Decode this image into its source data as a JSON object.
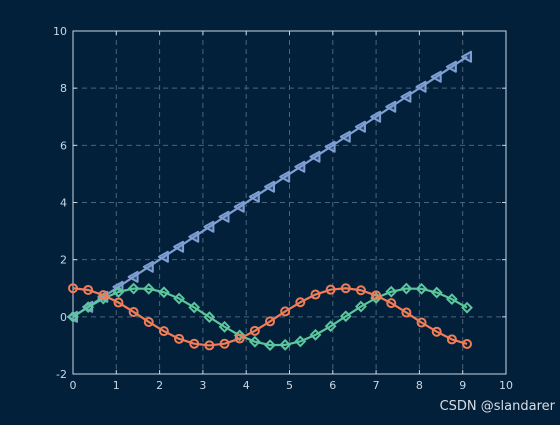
{
  "chart_data": {
    "type": "line",
    "title": "",
    "xlabel": "",
    "ylabel": "",
    "xlim": [
      0,
      10
    ],
    "ylim": [
      -2,
      10
    ],
    "xticks": [
      "0",
      "1",
      "2",
      "3",
      "4",
      "5",
      "6",
      "7",
      "8",
      "9",
      "10"
    ],
    "yticks": [
      "-2",
      "0",
      "2",
      "4",
      "6",
      "8",
      "10"
    ],
    "grid": true,
    "legend": "none",
    "x": [
      0,
      0.35,
      0.7,
      1.05,
      1.4,
      1.75,
      2.1,
      2.45,
      2.8,
      3.15,
      3.5,
      3.85,
      4.2,
      4.55,
      4.9,
      5.25,
      5.6,
      5.95,
      6.3,
      6.65,
      7.0,
      7.35,
      7.7,
      8.05,
      8.4,
      8.75,
      9.1
    ],
    "series": [
      {
        "color": "#7f9fd4",
        "marker": "triangle",
        "values": [
          0,
          0.35,
          0.7,
          1.05,
          1.4,
          1.75,
          2.1,
          2.45,
          2.8,
          3.15,
          3.5,
          3.85,
          4.2,
          4.55,
          4.9,
          5.25,
          5.6,
          5.95,
          6.3,
          6.65,
          7.0,
          7.35,
          7.7,
          8.05,
          8.4,
          8.75,
          9.1
        ]
      },
      {
        "color": "#5cc69c",
        "marker": "diamond",
        "values": [
          0,
          0.34,
          0.64,
          0.87,
          0.99,
          0.98,
          0.86,
          0.64,
          0.33,
          -0.01,
          -0.35,
          -0.65,
          -0.87,
          -0.99,
          -0.98,
          -0.86,
          -0.63,
          -0.33,
          0.02,
          0.36,
          0.66,
          0.88,
          0.99,
          0.98,
          0.85,
          0.62,
          0.32
        ]
      },
      {
        "color": "#f07d58",
        "marker": "circle",
        "values": [
          1.0,
          0.94,
          0.76,
          0.5,
          0.17,
          -0.18,
          -0.5,
          -0.77,
          -0.94,
          -1.0,
          -0.94,
          -0.76,
          -0.49,
          -0.16,
          0.19,
          0.51,
          0.78,
          0.95,
          1.0,
          0.93,
          0.75,
          0.48,
          0.15,
          -0.2,
          -0.52,
          -0.79,
          -0.95
        ]
      }
    ]
  },
  "style": {
    "background": "#03203a",
    "axis_color": "#c9d6e3",
    "grid_color": "#4c6379"
  },
  "watermark": "CSDN @slandarer"
}
